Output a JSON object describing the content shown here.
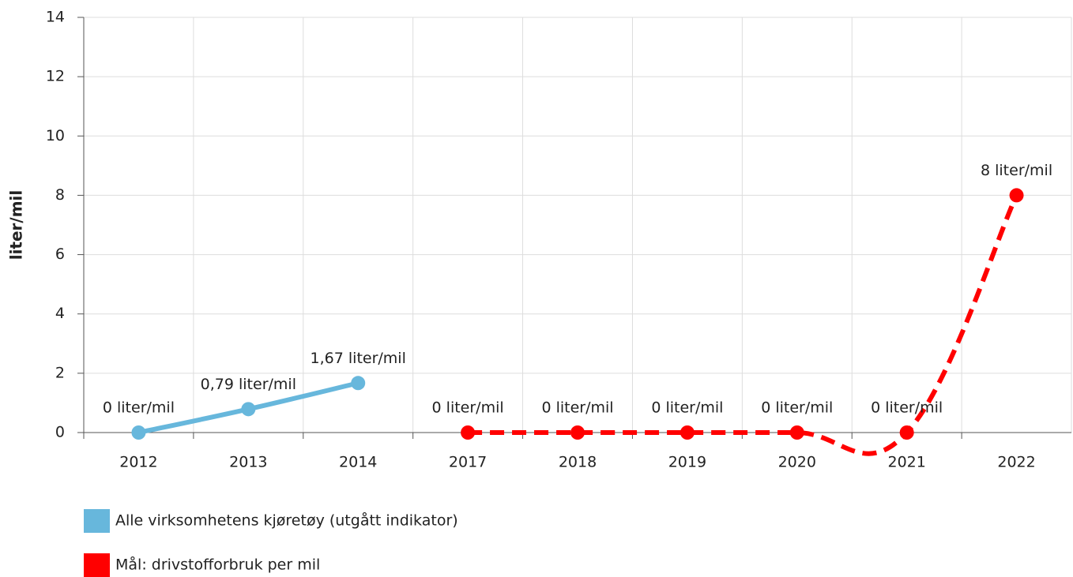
{
  "chart_data": {
    "type": "line",
    "y_label": "liter/mil",
    "categories": [
      "2012",
      "2013",
      "2014",
      "2017",
      "2018",
      "2019",
      "2020",
      "2021",
      "2022"
    ],
    "series": [
      {
        "name": "Alle virksomhetens kjøretøy (utgått indikator)",
        "color": "#67b7dc",
        "dashed": false,
        "values": [
          0,
          0.79,
          1.67,
          null,
          null,
          null,
          null,
          null,
          null
        ],
        "value_labels": [
          "0 liter/mil",
          "0,79 liter/mil",
          "1,67 liter/mil",
          null,
          null,
          null,
          null,
          null,
          null
        ]
      },
      {
        "name": "Mål: drivstofforbruk per mil",
        "color": "#ff0000",
        "dashed": true,
        "values": [
          null,
          null,
          null,
          0,
          0,
          0,
          0,
          0,
          8
        ],
        "value_labels": [
          null,
          null,
          null,
          "0 liter/mil",
          "0 liter/mil",
          "0 liter/mil",
          "0 liter/mil",
          "0 liter/mil",
          "8 liter/mil"
        ]
      }
    ],
    "ylim": [
      0,
      14
    ],
    "yticks": [
      0,
      2,
      4,
      6,
      8,
      10,
      12,
      14
    ],
    "grid": true
  }
}
